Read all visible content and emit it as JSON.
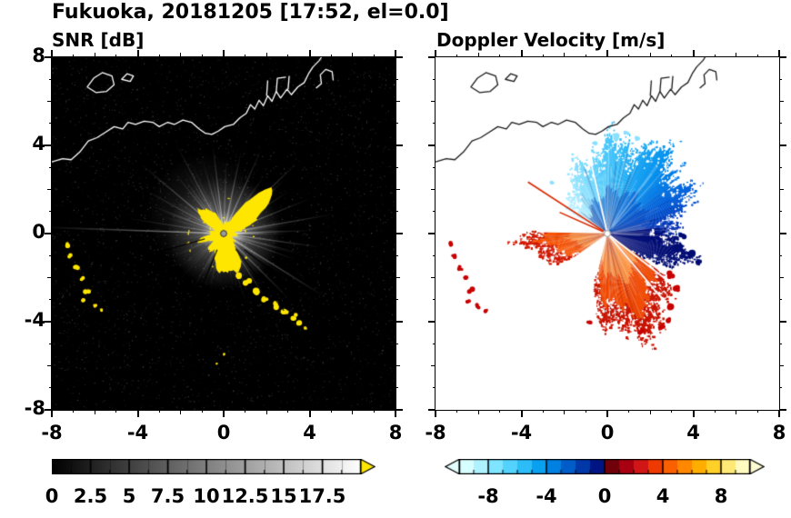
{
  "header": {
    "title": "Fukuoka, 20181205 [17:52, el=0.0]",
    "station": "Fukuoka",
    "date": "20181205",
    "time": "17:52",
    "elevation": "0.0"
  },
  "chart_data": [
    {
      "type": "heatmap",
      "title": "SNR [dB]",
      "units": "dB",
      "xlim": [
        -8,
        8
      ],
      "ylim": [
        -8,
        8
      ],
      "xtick_values": [
        -8,
        -4,
        0,
        4,
        8
      ],
      "xtick_labels": [
        "-8",
        "-4",
        "0",
        "4",
        "8"
      ],
      "ytick_values": [
        8,
        4,
        0,
        -4,
        -8
      ],
      "ytick_labels": [
        "8",
        "4",
        "0",
        "-4",
        "-8"
      ],
      "grid": false,
      "background": "#000000",
      "radar_center": [
        0,
        0
      ],
      "seed": 1337,
      "core_color": "#ffe600",
      "rays_minor_count": 130,
      "rays_major": [
        [
          178,
          8.4,
          0.55,
          1.6
        ],
        [
          171,
          4.6,
          0.35,
          1.2
        ],
        [
          160,
          3.2,
          0.3,
          1.1
        ],
        [
          151,
          4.1,
          0.4,
          1.3
        ],
        [
          140,
          5,
          0.45,
          1.5
        ],
        [
          129,
          3.7,
          0.4,
          1.2
        ],
        [
          118,
          4.7,
          0.4,
          1.4
        ],
        [
          106,
          3.5,
          0.4,
          1.2
        ],
        [
          97,
          4.2,
          0.45,
          1.3
        ],
        [
          88,
          3.4,
          0.4,
          1.2
        ],
        [
          78,
          4,
          0.45,
          1.3
        ],
        [
          66,
          4.3,
          0.45,
          1.4
        ],
        [
          55,
          3.3,
          0.4,
          1.2
        ],
        [
          44,
          4.7,
          0.5,
          1.5
        ],
        [
          33,
          3.7,
          0.4,
          1.2
        ],
        [
          22,
          4.3,
          0.45,
          1.3
        ],
        [
          10,
          5.2,
          0.5,
          1.5
        ],
        [
          2,
          4.1,
          0.45,
          1.3
        ],
        [
          -8,
          4.5,
          0.45,
          1.4
        ],
        [
          -20,
          3.6,
          0.4,
          1.2
        ],
        [
          -32,
          5.5,
          0.5,
          1.5
        ],
        [
          -45,
          4.3,
          0.45,
          1.4
        ],
        [
          -57,
          3.7,
          0.4,
          1.3
        ],
        [
          -68,
          2.9,
          0.35,
          1.1
        ],
        [
          -80,
          2.5,
          0.3,
          1
        ],
        [
          -95,
          2.2,
          0.25,
          1
        ],
        [
          205,
          2.7,
          0.3,
          1
        ],
        [
          223,
          2.3,
          0.25,
          1
        ],
        [
          241,
          2.9,
          0.3,
          1.1
        ],
        [
          262,
          2.4,
          0.25,
          1
        ]
      ],
      "dark_rays": [
        [
          196,
          0.9,
          5.6
        ],
        [
          248,
          0.8,
          3.0
        ],
        [
          -52,
          0.9,
          4.5
        ],
        [
          -38,
          1.2,
          5.3
        ]
      ],
      "clutter_arc": [
        [
          0.3,
          -1.55,
          0.13
        ],
        [
          0.7,
          -1.9,
          0.15
        ],
        [
          1.1,
          -2.2,
          0.13
        ],
        [
          1.5,
          -2.6,
          0.16
        ],
        [
          1.95,
          -2.95,
          0.14
        ],
        [
          2.4,
          -3.25,
          0.16
        ],
        [
          2.85,
          -3.5,
          0.13
        ],
        [
          3.25,
          -3.75,
          0.15
        ],
        [
          3.55,
          -4.0,
          0.12
        ]
      ],
      "clutter_left": [
        [
          -7.3,
          -0.5,
          0.12
        ],
        [
          -7.15,
          -1.0,
          0.1
        ],
        [
          -6.85,
          -1.55,
          0.11
        ],
        [
          -6.55,
          -2.05,
          0.1
        ],
        [
          -6.35,
          -2.6,
          0.12
        ],
        [
          -6.5,
          -3.05,
          0.1
        ],
        [
          -6.0,
          -3.3,
          0.1
        ],
        [
          -5.65,
          -3.5,
          0.09
        ]
      ],
      "extra_dots": [
        [
          0,
          -5.5,
          0.06
        ],
        [
          -0.3,
          -5.9,
          0.05
        ],
        [
          3.8,
          -4.3,
          0.07
        ]
      ],
      "colorbar": {
        "min": 0,
        "max": 20,
        "tick_values": [
          0,
          2.5,
          5,
          7.5,
          10,
          12.5,
          15,
          17.5
        ],
        "tick_labels": [
          "0",
          "2.5",
          "5",
          "7.5",
          "10",
          "12.5",
          "15",
          "17.5"
        ],
        "start_color": "#000000",
        "end_color": "#ffffff",
        "over_arrow_color": "#ffe600"
      }
    },
    {
      "type": "heatmap",
      "title": "Doppler Velocity [m/s]",
      "units": "m/s",
      "xlim": [
        -8,
        8
      ],
      "ylim": [
        -8,
        8
      ],
      "xtick_values": [
        -8,
        -4,
        0,
        4,
        8
      ],
      "xtick_labels": [
        "-8",
        "-4",
        "0",
        "4",
        "8"
      ],
      "ytick_values": [
        8,
        4,
        0,
        -4,
        -8
      ],
      "ytick_labels": [
        "8",
        "4",
        "0",
        "-4",
        "-8"
      ],
      "grid": false,
      "background": "#ffffff",
      "radar_center": [
        0,
        0
      ],
      "seed": 2024,
      "blue_fan": {
        "ang_range": [
          -12,
          150
        ],
        "radius_stops": [
          [
            -12,
            2.1
          ],
          [
            0,
            3.0
          ],
          [
            20,
            3.75
          ],
          [
            45,
            4.35
          ],
          [
            70,
            4.25
          ],
          [
            90,
            3.95
          ],
          [
            110,
            3.35
          ],
          [
            130,
            2.55
          ],
          [
            150,
            1.6
          ]
        ],
        "color_stops": [
          [
            -12,
            "#001078"
          ],
          [
            6,
            "#0030b4"
          ],
          [
            28,
            "#0060dc"
          ],
          [
            52,
            "#0090ee"
          ],
          [
            76,
            "#2ab6f8"
          ],
          [
            100,
            "#62d2fc"
          ],
          [
            124,
            "#97e6ff"
          ],
          [
            150,
            "#c4f2ff"
          ]
        ],
        "seed": 2.4,
        "speckle": 320
      },
      "inner_overlay": {
        "ang": [
          15,
          140
        ],
        "frac": 0.5,
        "color": "rgba(0,70,200,0.45)"
      },
      "navy_lobe": {
        "ang_range": [
          -36,
          6
        ],
        "radius_stops": [
          [
            -36,
            1.9
          ],
          [
            -26,
            3.25
          ],
          [
            -16,
            3.55
          ],
          [
            -6,
            3.15
          ],
          [
            6,
            2.35
          ]
        ],
        "color": "#000c74",
        "seed": 5.1,
        "speckle": 140
      },
      "west_wedge": {
        "ang_range": [
          179,
          215
        ],
        "radius_stops": [
          [
            179,
            3.25
          ],
          [
            188,
            3.7
          ],
          [
            198,
            3.15
          ],
          [
            207,
            2.5
          ],
          [
            215,
            1.7
          ]
        ],
        "bands": [
          [
            0,
            0.5,
            "#ff8c2e"
          ],
          [
            0.5,
            0.85,
            "#f85200"
          ],
          [
            0.85,
            1,
            "#d01800"
          ]
        ],
        "seed": 7.7,
        "speckle": 120
      },
      "south_lobe": {
        "ang_range": [
          -104,
          -36
        ],
        "radius_stops": [
          [
            -104,
            2.1
          ],
          [
            -92,
            3.8
          ],
          [
            -78,
            4.7
          ],
          [
            -62,
            4.5
          ],
          [
            -50,
            4.15
          ],
          [
            -42,
            3.6
          ],
          [
            -36,
            2.6
          ]
        ],
        "bands": [
          [
            0,
            0.5,
            "#ff8c2e"
          ],
          [
            0.5,
            0.85,
            "#f04800"
          ],
          [
            0.85,
            1,
            "#c81200"
          ]
        ],
        "seed": 9.3,
        "speckle": 260
      },
      "white_rays": [
        [
          103,
          3.8
        ],
        [
          -50,
          4.7
        ],
        [
          -38,
          3.9
        ]
      ],
      "red_rays": [
        [
          147,
          4.35
        ],
        [
          156,
          2.4
        ]
      ],
      "red_ray_color": "#dc2800",
      "cyan_blobs": [
        [
          0.35,
          4.35,
          0.14
        ],
        [
          0.9,
          4.55,
          0.12
        ],
        [
          1.4,
          4.3,
          0.1
        ],
        [
          -0.6,
          4.1,
          0.1
        ],
        [
          -2.6,
          2.35,
          0.1
        ]
      ],
      "cyan_color": "#8ae0ff",
      "navy_blobs": [
        [
          3.35,
          -0.7,
          0.2
        ],
        [
          3.85,
          -1.0,
          0.16
        ],
        [
          4.3,
          -1.3,
          0.13
        ],
        [
          3.5,
          -0.15,
          0.12
        ]
      ],
      "red_blobs": [
        [
          2.95,
          -1.9,
          0.17
        ],
        [
          3.25,
          -2.5,
          0.15
        ],
        [
          3.0,
          -3.3,
          0.14
        ],
        [
          2.8,
          -3.9,
          0.13
        ],
        [
          2.55,
          -4.25,
          0.11
        ],
        [
          -0.85,
          -4.05,
          0.1
        ],
        [
          1.6,
          -4.45,
          0.13
        ]
      ],
      "left_red_blobs": [
        [
          -7.3,
          -0.5,
          0.12
        ],
        [
          -7.15,
          -1.0,
          0.1
        ],
        [
          -6.85,
          -1.55,
          0.11
        ],
        [
          -6.55,
          -2.05,
          0.1
        ],
        [
          -6.35,
          -2.6,
          0.12
        ],
        [
          -6.5,
          -3.05,
          0.1
        ],
        [
          -6.0,
          -3.3,
          0.1
        ],
        [
          -5.65,
          -3.5,
          0.09
        ]
      ],
      "red_color": "#c80000",
      "colorbar": {
        "min": -10,
        "max": 10,
        "tick_values": [
          -8,
          -4,
          0,
          4,
          8
        ],
        "tick_labels": [
          "-8",
          "-4",
          "0",
          "4",
          "8"
        ],
        "colors": [
          "#d8ffff",
          "#aef2ff",
          "#7ee4ff",
          "#52d2fc",
          "#2cbcf8",
          "#0aa0f0",
          "#0080e0",
          "#005cc8",
          "#0038a8",
          "#001484",
          "#70000a",
          "#a80010",
          "#d01616",
          "#ee3a00",
          "#fa6000",
          "#ff8800",
          "#ffae00",
          "#ffd028",
          "#ffe976",
          "#fffbc0"
        ],
        "under_arrow_color": "#e2ffff",
        "over_arrow_color": "#fffbd2"
      }
    }
  ],
  "coastline": {
    "lines": [
      {
        "pts": [
          [
            -8,
            3.25
          ],
          [
            -7.5,
            3.4
          ],
          [
            -7.1,
            3.35
          ],
          [
            -6.7,
            3.7
          ],
          [
            -6.3,
            4.2
          ],
          [
            -5.9,
            4.35
          ],
          [
            -5.5,
            4.6
          ],
          [
            -5.1,
            4.85
          ],
          [
            -4.7,
            4.75
          ],
          [
            -4.45,
            5.05
          ],
          [
            -4.1,
            4.95
          ],
          [
            -3.7,
            5.1
          ],
          [
            -3.3,
            5.05
          ],
          [
            -3.0,
            4.85
          ],
          [
            -2.6,
            5.05
          ],
          [
            -2.3,
            4.95
          ],
          [
            -1.9,
            5.15
          ],
          [
            -1.5,
            5.05
          ],
          [
            -1.15,
            4.75
          ],
          [
            -0.85,
            4.55
          ],
          [
            -0.55,
            4.5
          ],
          [
            -0.25,
            4.65
          ],
          [
            0.05,
            4.85
          ],
          [
            0.45,
            4.95
          ],
          [
            0.75,
            5.25
          ],
          [
            1.05,
            5.45
          ],
          [
            1.25,
            5.85
          ],
          [
            1.45,
            5.65
          ],
          [
            1.65,
            6.05
          ],
          [
            1.85,
            5.8
          ],
          [
            2.05,
            6.25
          ],
          [
            2.25,
            6.0
          ],
          [
            2.45,
            6.45
          ],
          [
            2.65,
            6.15
          ],
          [
            2.95,
            6.55
          ],
          [
            3.15,
            6.3
          ],
          [
            3.45,
            6.65
          ],
          [
            3.75,
            6.85
          ],
          [
            3.95,
            7.25
          ],
          [
            4.15,
            7.55
          ],
          [
            4.45,
            7.85
          ],
          [
            4.55,
            8.0
          ]
        ]
      },
      {
        "pts": [
          [
            2.0,
            6.25
          ],
          [
            2.05,
            6.95
          ]
        ]
      },
      {
        "pts": [
          [
            2.45,
            6.45
          ],
          [
            2.5,
            7.05
          ],
          [
            2.9,
            7.1
          ]
        ]
      },
      {
        "pts": [
          [
            3.0,
            6.55
          ],
          [
            3.05,
            7.15
          ]
        ]
      },
      {
        "pts": [
          [
            4.3,
            6.6
          ],
          [
            4.55,
            6.8
          ],
          [
            4.5,
            7.2
          ],
          [
            4.75,
            7.45
          ],
          [
            5.05,
            7.35
          ],
          [
            5.1,
            6.95
          ]
        ]
      }
    ],
    "polygons": [
      {
        "pts": [
          [
            -6.35,
            6.65
          ],
          [
            -6.05,
            7.05
          ],
          [
            -5.65,
            7.3
          ],
          [
            -5.2,
            7.15
          ],
          [
            -5.1,
            6.75
          ],
          [
            -5.45,
            6.45
          ],
          [
            -5.95,
            6.4
          ]
        ]
      },
      {
        "pts": [
          [
            -4.75,
            7.0
          ],
          [
            -4.5,
            7.25
          ],
          [
            -4.2,
            7.15
          ],
          [
            -4.35,
            6.9
          ]
        ]
      }
    ]
  }
}
